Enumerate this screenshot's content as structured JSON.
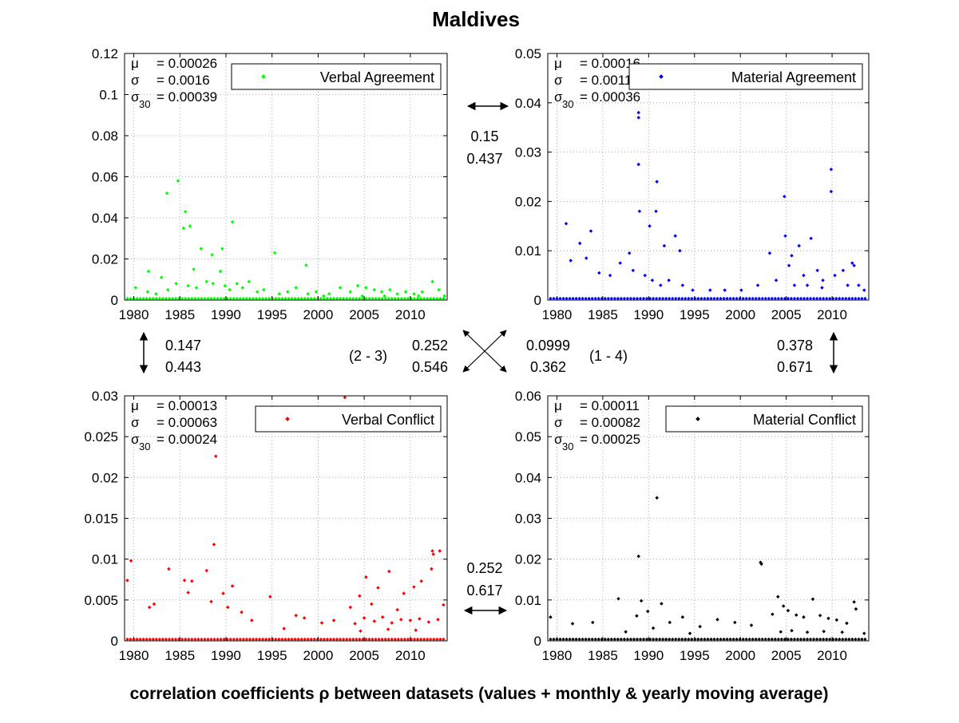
{
  "figure": {
    "title": "Maldives",
    "caption": "correlation coefficients ρ between datasets (values + monthly & yearly moving average)"
  },
  "chart_data": [
    {
      "type": "scatter",
      "legend": "Verbal Agreement",
      "color": "#00ff00",
      "stats": {
        "mu": "0.00026",
        "sigma": "0.0016",
        "sigma30": "0.00039"
      },
      "xlim": [
        1979,
        2014
      ],
      "ylim": [
        0,
        0.12
      ],
      "xticks": [
        1980,
        1985,
        1990,
        1995,
        2000,
        2005,
        2010
      ],
      "yticks": [
        "0",
        "0.02",
        "0.04",
        "0.06",
        "0.08",
        "0.1",
        "0.12"
      ],
      "grid": true,
      "legend_position": "top-right",
      "points": [
        [
          1983.6,
          0.052
        ],
        [
          1984.8,
          0.058
        ],
        [
          1985.6,
          0.043
        ],
        [
          1985.4,
          0.035
        ],
        [
          1986.1,
          0.036
        ],
        [
          1987.3,
          0.025
        ],
        [
          1988.5,
          0.022
        ],
        [
          1989.6,
          0.025
        ],
        [
          1990.7,
          0.038
        ],
        [
          1995.3,
          0.023
        ],
        [
          1998.7,
          0.017
        ],
        [
          1981.6,
          0.014
        ],
        [
          1986.5,
          0.015
        ],
        [
          1989.4,
          0.014
        ],
        [
          1983.0,
          0.011
        ],
        [
          1980.2,
          0.006
        ],
        [
          1981.5,
          0.004
        ],
        [
          1982.4,
          0.003
        ],
        [
          1983.7,
          0.005
        ],
        [
          1984.6,
          0.008
        ],
        [
          1985.9,
          0.007
        ],
        [
          1986.8,
          0.006
        ],
        [
          1987.9,
          0.009
        ],
        [
          1988.6,
          0.008
        ],
        [
          1989.9,
          0.007
        ],
        [
          1990.4,
          0.005
        ],
        [
          1991.2,
          0.008
        ],
        [
          1991.8,
          0.006
        ],
        [
          1992.5,
          0.009
        ],
        [
          1993.4,
          0.004
        ],
        [
          1994.1,
          0.005
        ],
        [
          1995.8,
          0.003
        ],
        [
          1996.7,
          0.004
        ],
        [
          1997.6,
          0.006
        ],
        [
          1998.9,
          0.003
        ],
        [
          1999.8,
          0.004
        ],
        [
          2001.2,
          0.003
        ],
        [
          2002.4,
          0.006
        ],
        [
          2003.5,
          0.004
        ],
        [
          2004.3,
          0.007
        ],
        [
          2005.2,
          0.006
        ],
        [
          2006.1,
          0.005
        ],
        [
          2006.9,
          0.004
        ],
        [
          2007.8,
          0.005
        ],
        [
          2008.6,
          0.003
        ],
        [
          2009.5,
          0.004
        ],
        [
          2010.4,
          0.003
        ],
        [
          2011.3,
          0.004
        ],
        [
          2012.4,
          0.009
        ],
        [
          2013.1,
          0.005
        ],
        [
          2013.7,
          0.002
        ],
        [
          2004.8,
          0.002
        ],
        [
          2007.2,
          0.002
        ],
        [
          2010.9,
          0.002
        ],
        [
          2000.6,
          0.002
        ]
      ]
    },
    {
      "type": "scatter",
      "legend": "Material Agreement",
      "color": "#0000ff",
      "stats": {
        "mu": "0.00016",
        "sigma": "0.0011",
        "sigma30": "0.00036"
      },
      "xlim": [
        1979,
        2014
      ],
      "ylim": [
        0,
        0.05
      ],
      "xticks": [
        1980,
        1985,
        1990,
        1995,
        2000,
        2005,
        2010
      ],
      "yticks": [
        "0",
        "0.01",
        "0.02",
        "0.03",
        "0.04",
        "0.05"
      ],
      "grid": true,
      "legend_position": "top-right",
      "points": [
        [
          1988.9,
          0.038
        ],
        [
          1988.9,
          0.037
        ],
        [
          1988.9,
          0.0275
        ],
        [
          1990.9,
          0.024
        ],
        [
          1989.0,
          0.018
        ],
        [
          1990.8,
          0.018
        ],
        [
          1981.0,
          0.0155
        ],
        [
          1983.7,
          0.014
        ],
        [
          1992.9,
          0.013
        ],
        [
          1990.1,
          0.015
        ],
        [
          1991.7,
          0.011
        ],
        [
          1993.4,
          0.01
        ],
        [
          1987.9,
          0.0095
        ],
        [
          1982.5,
          0.0115
        ],
        [
          1981.5,
          0.008
        ],
        [
          1983.2,
          0.0085
        ],
        [
          1984.6,
          0.0055
        ],
        [
          1985.8,
          0.005
        ],
        [
          1986.9,
          0.0075
        ],
        [
          1988.3,
          0.006
        ],
        [
          1989.6,
          0.005
        ],
        [
          1990.4,
          0.004
        ],
        [
          1991.3,
          0.003
        ],
        [
          1992.2,
          0.004
        ],
        [
          1993.7,
          0.003
        ],
        [
          1994.8,
          0.002
        ],
        [
          1996.7,
          0.002
        ],
        [
          1998.3,
          0.002
        ],
        [
          2000.1,
          0.002
        ],
        [
          2001.9,
          0.003
        ],
        [
          2003.2,
          0.0095
        ],
        [
          2003.9,
          0.004
        ],
        [
          2004.8,
          0.021
        ],
        [
          2004.9,
          0.013
        ],
        [
          2005.3,
          0.007
        ],
        [
          2005.6,
          0.009
        ],
        [
          2006.4,
          0.011
        ],
        [
          2006.9,
          0.005
        ],
        [
          2007.7,
          0.0125
        ],
        [
          2008.4,
          0.006
        ],
        [
          2009.0,
          0.004
        ],
        [
          2009.9,
          0.0265
        ],
        [
          2009.9,
          0.022
        ],
        [
          2010.3,
          0.005
        ],
        [
          2011.2,
          0.006
        ],
        [
          2012.2,
          0.0075
        ],
        [
          2012.4,
          0.007
        ],
        [
          2012.9,
          0.003
        ],
        [
          2013.5,
          0.002
        ],
        [
          2005.9,
          0.003
        ],
        [
          2007.3,
          0.003
        ],
        [
          2008.9,
          0.0025
        ],
        [
          2011.7,
          0.003
        ]
      ]
    },
    {
      "type": "scatter",
      "legend": "Verbal Conflict",
      "color": "#ff0000",
      "stats": {
        "mu": "0.00013",
        "sigma": "0.00063",
        "sigma30": "0.00024"
      },
      "xlim": [
        1979,
        2014
      ],
      "ylim": [
        0,
        0.03
      ],
      "xticks": [
        1980,
        1985,
        1990,
        1995,
        2000,
        2005,
        2010
      ],
      "yticks": [
        "0",
        "0.005",
        "0.01",
        "0.015",
        "0.02",
        "0.025",
        "0.03"
      ],
      "grid": true,
      "legend_position": "top-right",
      "points": [
        [
          2002.9,
          0.0298
        ],
        [
          1988.9,
          0.0226
        ],
        [
          1988.7,
          0.0118
        ],
        [
          1979.3,
          0.0074
        ],
        [
          1979.7,
          0.0098
        ],
        [
          1983.8,
          0.0088
        ],
        [
          1981.7,
          0.0041
        ],
        [
          1982.2,
          0.0045
        ],
        [
          1985.5,
          0.0074
        ],
        [
          1986.3,
          0.0073
        ],
        [
          1985.9,
          0.0059
        ],
        [
          1987.9,
          0.0086
        ],
        [
          1988.4,
          0.0048
        ],
        [
          1989.7,
          0.0058
        ],
        [
          1990.7,
          0.0067
        ],
        [
          1990.2,
          0.0041
        ],
        [
          1991.7,
          0.0035
        ],
        [
          1992.8,
          0.0025
        ],
        [
          1994.8,
          0.0054
        ],
        [
          1996.3,
          0.0015
        ],
        [
          1997.6,
          0.0031
        ],
        [
          1998.5,
          0.0028
        ],
        [
          2000.4,
          0.0022
        ],
        [
          2001.7,
          0.0025
        ],
        [
          2003.5,
          0.0041
        ],
        [
          2004.5,
          0.0055
        ],
        [
          2005.2,
          0.0078
        ],
        [
          2005.8,
          0.0045
        ],
        [
          2006.5,
          0.0065
        ],
        [
          2007.7,
          0.0085
        ],
        [
          2008.6,
          0.0038
        ],
        [
          2009.3,
          0.0058
        ],
        [
          2010.4,
          0.0066
        ],
        [
          2011.2,
          0.0073
        ],
        [
          2012.4,
          0.011
        ],
        [
          2012.5,
          0.0106
        ],
        [
          2012.3,
          0.0088
        ],
        [
          2013.2,
          0.011
        ],
        [
          2013.6,
          0.0044
        ],
        [
          2004.0,
          0.0021
        ],
        [
          2005.0,
          0.0028
        ],
        [
          2006.1,
          0.0024
        ],
        [
          2007.0,
          0.0029
        ],
        [
          2008.0,
          0.0022
        ],
        [
          2009.0,
          0.0026
        ],
        [
          2010.0,
          0.0025
        ],
        [
          2011.0,
          0.0027
        ],
        [
          2012.0,
          0.0023
        ],
        [
          2013.0,
          0.0026
        ],
        [
          2004.6,
          0.0012
        ],
        [
          2007.6,
          0.0014
        ],
        [
          2010.6,
          0.0013
        ]
      ]
    },
    {
      "type": "scatter",
      "legend": "Material Conflict",
      "color": "#000000",
      "stats": {
        "mu": "0.00011",
        "sigma": "0.00082",
        "sigma30": "0.00025"
      },
      "xlim": [
        1979,
        2014
      ],
      "ylim": [
        0,
        0.06
      ],
      "xticks": [
        1980,
        1985,
        1990,
        1995,
        2000,
        2005,
        2010
      ],
      "yticks": [
        "0",
        "0.01",
        "0.02",
        "0.03",
        "0.04",
        "0.05",
        "0.06"
      ],
      "grid": true,
      "legend_position": "top-right",
      "points": [
        [
          1990.9,
          0.035
        ],
        [
          1988.9,
          0.0207
        ],
        [
          2002.2,
          0.0192
        ],
        [
          2002.3,
          0.0188
        ],
        [
          1979.3,
          0.0058
        ],
        [
          1981.7,
          0.0042
        ],
        [
          1983.9,
          0.0045
        ],
        [
          1986.7,
          0.0103
        ],
        [
          1988.7,
          0.0061
        ],
        [
          1989.2,
          0.0098
        ],
        [
          1989.9,
          0.0072
        ],
        [
          1991.4,
          0.0091
        ],
        [
          1992.3,
          0.0045
        ],
        [
          1993.7,
          0.0058
        ],
        [
          1995.6,
          0.0035
        ],
        [
          1997.5,
          0.0052
        ],
        [
          1999.4,
          0.0045
        ],
        [
          2001.2,
          0.0038
        ],
        [
          2003.5,
          0.0065
        ],
        [
          2004.1,
          0.0108
        ],
        [
          2004.7,
          0.0085
        ],
        [
          2005.2,
          0.0074
        ],
        [
          2006.1,
          0.0063
        ],
        [
          2006.9,
          0.0058
        ],
        [
          2007.9,
          0.0102
        ],
        [
          2008.7,
          0.0062
        ],
        [
          2009.6,
          0.0055
        ],
        [
          2010.5,
          0.0051
        ],
        [
          2011.6,
          0.0043
        ],
        [
          2012.4,
          0.0095
        ],
        [
          2012.6,
          0.0078
        ],
        [
          2013.5,
          0.0018
        ],
        [
          2004.4,
          0.0022
        ],
        [
          2005.6,
          0.0025
        ],
        [
          2007.3,
          0.0021
        ],
        [
          2009.1,
          0.0023
        ],
        [
          2011.1,
          0.0021
        ],
        [
          1987.5,
          0.0022
        ],
        [
          1990.5,
          0.0031
        ],
        [
          1994.5,
          0.0018
        ]
      ]
    }
  ],
  "correlations": {
    "top": {
      "v1": "0.15",
      "v2": "0.437"
    },
    "left": {
      "v1": "0.147",
      "v2": "0.443"
    },
    "right": {
      "v1": "0.378",
      "v2": "0.671"
    },
    "diag_23": {
      "label": "(2 - 3)",
      "v1": "0.252",
      "v2": "0.546"
    },
    "diag_14": {
      "label": "(1 - 4)",
      "v1": "0.0999",
      "v2": "0.362"
    },
    "bottom": {
      "v1": "0.252",
      "v2": "0.617"
    }
  }
}
